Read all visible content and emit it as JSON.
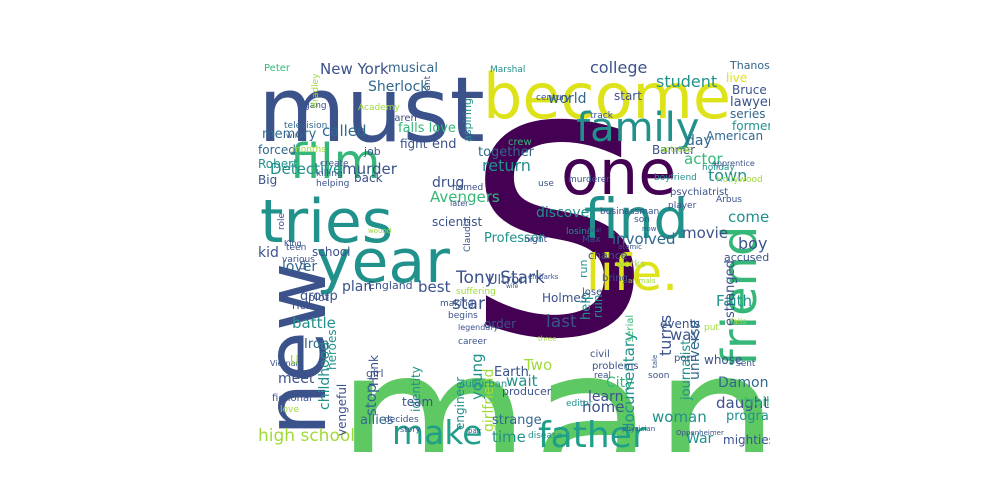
{
  "palette": {
    "dark_purple": "#440154",
    "indigo": "#3b528b",
    "blue": "#31688e",
    "teal": "#21918c",
    "green_teal": "#1f9e89",
    "green": "#35b779",
    "light_green": "#5ec962",
    "lime": "#a0da39",
    "yellow": "#dde318",
    "bright_yellow": "#fde725"
  },
  "words": [
    {
      "text": "man",
      "color": "light_green"
    },
    {
      "text": "S",
      "color": "dark_purple"
    },
    {
      "text": "must",
      "color": "indigo"
    },
    {
      "text": "become",
      "color": "yellow"
    },
    {
      "text": "new",
      "color": "indigo"
    },
    {
      "text": "one",
      "color": "dark_purple"
    },
    {
      "text": "tries",
      "color": "teal"
    },
    {
      "text": "year",
      "color": "teal"
    },
    {
      "text": "film",
      "color": "green"
    },
    {
      "text": "find",
      "color": "teal"
    },
    {
      "text": "life.",
      "color": "yellow"
    },
    {
      "text": "friend",
      "color": "green"
    },
    {
      "text": "family",
      "color": "teal"
    },
    {
      "text": "make",
      "color": "green_teal"
    },
    {
      "text": "father",
      "color": "green_teal"
    },
    {
      "text": "high school",
      "color": "lime"
    },
    {
      "text": "New York",
      "color": "indigo"
    },
    {
      "text": "musical",
      "color": "blue"
    },
    {
      "text": "college",
      "color": "indigo"
    },
    {
      "text": "student",
      "color": "teal"
    },
    {
      "text": "world",
      "color": "blue"
    },
    {
      "text": "Sherlock",
      "color": "blue"
    },
    {
      "text": "called",
      "color": "blue"
    },
    {
      "text": "falls love",
      "color": "green"
    },
    {
      "text": "memory",
      "color": "blue"
    },
    {
      "text": "end",
      "color": "indigo"
    },
    {
      "text": "day",
      "color": "blue"
    },
    {
      "text": "murder",
      "color": "indigo"
    },
    {
      "text": "Detective",
      "color": "teal"
    },
    {
      "text": "drug",
      "color": "indigo"
    },
    {
      "text": "Avengers",
      "color": "green"
    },
    {
      "text": "discover",
      "color": "teal"
    },
    {
      "text": "involved",
      "color": "blue"
    },
    {
      "text": "movie",
      "color": "indigo"
    },
    {
      "text": "return",
      "color": "teal"
    },
    {
      "text": "together",
      "color": "blue"
    },
    {
      "text": "actor",
      "color": "green"
    },
    {
      "text": "town",
      "color": "teal"
    },
    {
      "text": "come",
      "color": "teal"
    },
    {
      "text": "boy",
      "color": "indigo"
    },
    {
      "text": "Tony Stark",
      "color": "indigo"
    },
    {
      "text": "star",
      "color": "indigo"
    },
    {
      "text": "last",
      "color": "indigo"
    },
    {
      "text": "Faith",
      "color": "teal"
    },
    {
      "text": "way",
      "color": "indigo"
    },
    {
      "text": "battle",
      "color": "teal"
    },
    {
      "text": "kid",
      "color": "indigo"
    },
    {
      "text": "lover",
      "color": "blue"
    },
    {
      "text": "plan",
      "color": "indigo"
    },
    {
      "text": "best",
      "color": "indigo"
    },
    {
      "text": "Two",
      "color": "lime"
    },
    {
      "text": "daughter",
      "color": "indigo"
    },
    {
      "text": "Damon",
      "color": "blue"
    },
    {
      "text": "home",
      "color": "indigo"
    },
    {
      "text": "woman",
      "color": "teal"
    },
    {
      "text": "time",
      "color": "teal"
    },
    {
      "text": "War",
      "color": "teal"
    },
    {
      "text": "wait",
      "color": "teal"
    },
    {
      "text": "Earth",
      "color": "indigo"
    },
    {
      "text": "City",
      "color": "green"
    },
    {
      "text": "learn",
      "color": "indigo"
    },
    {
      "text": "documentary",
      "color": "teal"
    },
    {
      "text": "universe",
      "color": "blue"
    },
    {
      "text": "turns",
      "color": "indigo"
    },
    {
      "text": "young",
      "color": "teal"
    },
    {
      "text": "girlfriend",
      "color": "lime"
    },
    {
      "text": "childhood",
      "color": "teal"
    },
    {
      "text": "stop",
      "color": "blue"
    },
    {
      "text": "Iron",
      "color": "blue"
    },
    {
      "text": "meet",
      "color": "indigo"
    },
    {
      "text": "group",
      "color": "indigo"
    },
    {
      "text": "allies",
      "color": "blue"
    },
    {
      "text": "strange",
      "color": "blue"
    },
    {
      "text": "journalist",
      "color": "teal"
    },
    {
      "text": "estranged",
      "color": "indigo"
    },
    {
      "text": "mightiest",
      "color": "indigo"
    },
    {
      "text": "program",
      "color": "teal"
    },
    {
      "text": "trail",
      "color": "green"
    },
    {
      "text": "lawyer",
      "color": "indigo"
    },
    {
      "text": "Bruce",
      "color": "indigo"
    },
    {
      "text": "series",
      "color": "blue"
    },
    {
      "text": "former",
      "color": "teal"
    },
    {
      "text": "American",
      "color": "blue"
    },
    {
      "text": "live",
      "color": "yellow"
    },
    {
      "text": "Thanos",
      "color": "blue"
    },
    {
      "text": "Robert",
      "color": "teal"
    },
    {
      "text": "Big",
      "color": "indigo"
    },
    {
      "text": "back",
      "color": "indigo"
    },
    {
      "text": "job",
      "color": "indigo"
    },
    {
      "text": "fight",
      "color": "indigo"
    },
    {
      "text": "forced",
      "color": "blue"
    },
    {
      "text": "Peter",
      "color": "green"
    },
    {
      "text": "scientist",
      "color": "indigo"
    },
    {
      "text": "Professor",
      "color": "teal"
    },
    {
      "text": "Ultron",
      "color": "indigo"
    },
    {
      "text": "school",
      "color": "indigo"
    },
    {
      "text": "Holmes",
      "color": "indigo"
    },
    {
      "text": "England",
      "color": "indigo"
    },
    {
      "text": "rich",
      "color": "indigo"
    },
    {
      "text": "plot",
      "color": "indigo"
    },
    {
      "text": "heroes",
      "color": "teal"
    },
    {
      "text": "Hank",
      "color": "indigo"
    },
    {
      "text": "vengeful",
      "color": "indigo"
    },
    {
      "text": "engineer",
      "color": "teal"
    },
    {
      "text": "identity",
      "color": "teal"
    },
    {
      "text": "order",
      "color": "indigo"
    },
    {
      "text": "help",
      "color": "teal"
    },
    {
      "text": "ruin",
      "color": "teal"
    },
    {
      "text": "run",
      "color": "teal"
    },
    {
      "text": "events",
      "color": "indigo"
    },
    {
      "text": "whose",
      "color": "indigo"
    },
    {
      "text": "start",
      "color": "indigo"
    },
    {
      "text": "aspiring",
      "color": "teal"
    },
    {
      "text": "Banner",
      "color": "indigo"
    },
    {
      "text": "Marshal",
      "color": "teal"
    },
    {
      "text": "Karen",
      "color": "indigo"
    },
    {
      "text": "crew",
      "color": "green"
    },
    {
      "text": "television",
      "color": "blue"
    },
    {
      "text": "months",
      "color": "lime"
    },
    {
      "text": "create",
      "color": "indigo"
    },
    {
      "text": "killing",
      "color": "indigo"
    },
    {
      "text": "helping",
      "color": "indigo"
    },
    {
      "text": "role",
      "color": "indigo"
    },
    {
      "text": "boyfriend",
      "color": "teal"
    },
    {
      "text": "psychiatrist",
      "color": "indigo"
    },
    {
      "text": "player",
      "color": "indigo"
    },
    {
      "text": "Arbus",
      "color": "indigo"
    },
    {
      "text": "Hollywood",
      "color": "lime"
    },
    {
      "text": "holiday",
      "color": "teal"
    },
    {
      "text": "actress",
      "color": "lime"
    },
    {
      "text": "murderer",
      "color": "indigo"
    },
    {
      "text": "named",
      "color": "indigo"
    },
    {
      "text": "businessman",
      "color": "indigo"
    },
    {
      "text": "losing",
      "color": "teal"
    },
    {
      "text": "son",
      "color": "indigo"
    },
    {
      "text": "chance",
      "color": "indigo"
    },
    {
      "text": "works",
      "color": "lime"
    },
    {
      "text": "bring",
      "color": "indigo"
    },
    {
      "text": "accused",
      "color": "indigo"
    },
    {
      "text": "lose",
      "color": "indigo"
    },
    {
      "text": "suffering",
      "color": "lime"
    },
    {
      "text": "making",
      "color": "indigo"
    },
    {
      "text": "begins",
      "color": "indigo"
    },
    {
      "text": "legendary",
      "color": "indigo"
    },
    {
      "text": "career",
      "color": "indigo"
    },
    {
      "text": "civil",
      "color": "indigo"
    },
    {
      "text": "problems",
      "color": "indigo"
    },
    {
      "text": "real",
      "color": "indigo"
    },
    {
      "text": "serial",
      "color": "green"
    },
    {
      "text": "porn",
      "color": "indigo"
    },
    {
      "text": "soon",
      "color": "indigo"
    },
    {
      "text": "sent",
      "color": "indigo"
    },
    {
      "text": "put",
      "color": "lime"
    },
    {
      "text": "falls",
      "color": "lime"
    },
    {
      "text": "suburban",
      "color": "teal"
    },
    {
      "text": "producer",
      "color": "indigo"
    },
    {
      "text": "editor",
      "color": "teal"
    },
    {
      "text": "disease",
      "color": "teal"
    },
    {
      "text": "decides",
      "color": "indigo"
    },
    {
      "text": "story",
      "color": "indigo"
    },
    {
      "text": "love",
      "color": "lime"
    },
    {
      "text": "fictional",
      "color": "indigo"
    },
    {
      "text": "girl",
      "color": "indigo"
    },
    {
      "text": "team",
      "color": "indigo"
    },
    {
      "text": "teen",
      "color": "indigo"
    },
    {
      "text": "various",
      "color": "indigo"
    },
    {
      "text": "King",
      "color": "indigo"
    },
    {
      "text": "Vietnam",
      "color": "indigo"
    },
    {
      "text": "later",
      "color": "indigo"
    },
    {
      "text": "use",
      "color": "indigo"
    },
    {
      "text": "night",
      "color": "indigo"
    },
    {
      "text": "Claudia",
      "color": "indigo"
    },
    {
      "text": "Max",
      "color": "indigo"
    },
    {
      "text": "track",
      "color": "indigo"
    },
    {
      "text": "century",
      "color": "indigo"
    },
    {
      "text": "want",
      "color": "indigo"
    },
    {
      "text": "gang",
      "color": "indigo"
    },
    {
      "text": "Academy",
      "color": "lime"
    },
    {
      "text": "Bradley",
      "color": "lime"
    },
    {
      "text": "win",
      "color": "indigo"
    },
    {
      "text": "apprentice",
      "color": "indigo"
    },
    {
      "text": "atomic",
      "color": "indigo"
    },
    {
      "text": "physician",
      "color": "indigo"
    },
    {
      "text": "Oppenheimer",
      "color": "indigo"
    },
    {
      "text": "tale",
      "color": "indigo"
    },
    {
      "text": "embarks",
      "color": "indigo"
    },
    {
      "text": "final",
      "color": "indigo"
    },
    {
      "text": "wife",
      "color": "indigo"
    },
    {
      "text": "pair",
      "color": "indigo"
    },
    {
      "text": "animals",
      "color": "lime"
    },
    {
      "text": "wound",
      "color": "lime"
    },
    {
      "text": "three",
      "color": "lime"
    },
    {
      "text": "U",
      "color": "lime"
    },
    {
      "text": "LA",
      "color": "indigo"
    },
    {
      "text": "now",
      "color": "indigo"
    }
  ]
}
